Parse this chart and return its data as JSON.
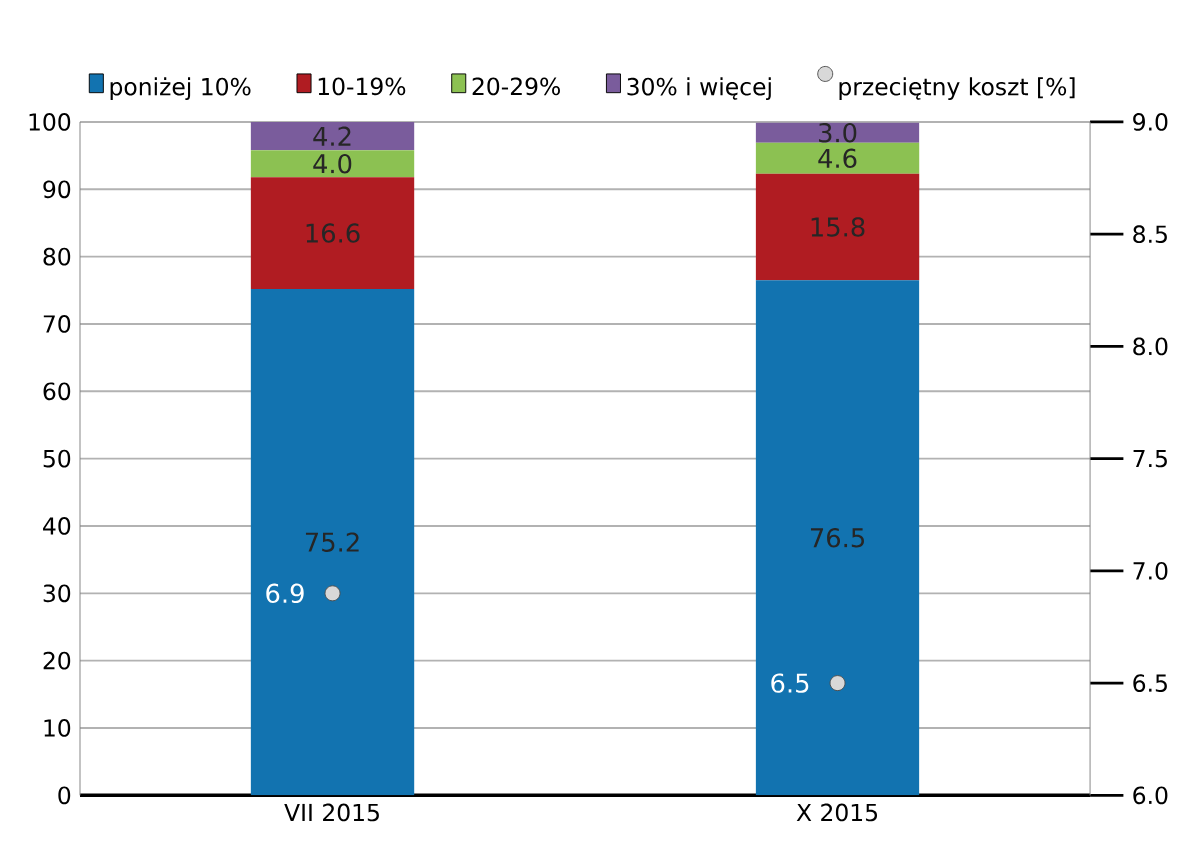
{
  "chart_data": {
    "type": "bar",
    "stacked": true,
    "grid": "y",
    "legend": "top",
    "categories": [
      "VII 2015",
      "X 2015"
    ],
    "ylim": [
      0,
      100
    ],
    "yticks": [
      0,
      10,
      20,
      30,
      40,
      50,
      60,
      70,
      80,
      90,
      100
    ],
    "y2lim": [
      6.0,
      9.0
    ],
    "y2ticks": [
      {
        "value": 6.0,
        "label": "6.0"
      },
      {
        "value": 6.5,
        "label": "6.5"
      },
      {
        "value": 7.0,
        "label": "7.0"
      },
      {
        "value": 7.5,
        "label": "7.5"
      },
      {
        "value": 8.0,
        "label": "8.0"
      },
      {
        "value": 8.5,
        "label": "8.5"
      },
      {
        "value": 9.0,
        "label": "9.0"
      }
    ],
    "series": [
      {
        "name": "poniżej 10%",
        "color": "#1273b0",
        "values": [
          75.2,
          76.5
        ],
        "value_labels": [
          "75.2",
          "76.5"
        ]
      },
      {
        "name": "10-19%",
        "color": "#b01c22",
        "values": [
          16.6,
          15.8
        ],
        "value_labels": [
          "16.6",
          "15.8"
        ]
      },
      {
        "name": "20-29%",
        "color": "#8cc152",
        "values": [
          4.0,
          4.6
        ],
        "value_labels": [
          "4.0",
          "4.6"
        ]
      },
      {
        "name": "30% i więcej",
        "color": "#7a5c9c",
        "values": [
          4.2,
          3.0
        ],
        "value_labels": [
          "4.2",
          "3.0"
        ]
      },
      {
        "name": "przeciętny koszt [%]",
        "type": "scatter",
        "axis": "y2",
        "marker": "circle",
        "color": "#d8d8d8",
        "x": [
          "VII 2015",
          "X 2015"
        ],
        "values": [
          6.9,
          6.5
        ],
        "value_labels": [
          "6.9",
          "6.5"
        ]
      }
    ]
  }
}
